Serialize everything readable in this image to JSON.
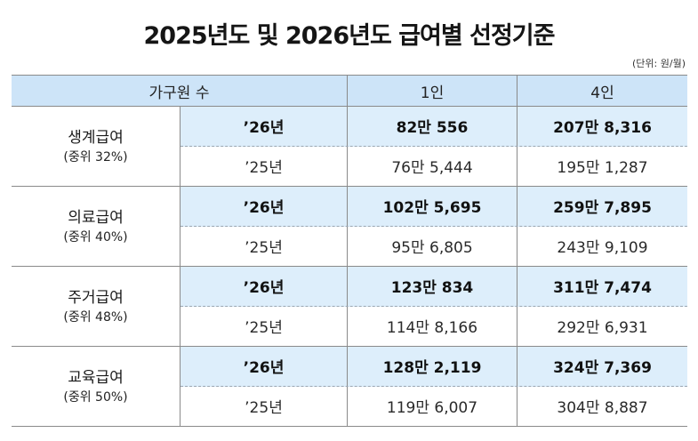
{
  "title": "2025년도 및 2026년도 급여별 선정기준",
  "unit": "(단위: 원/월)",
  "header": {
    "household": "가구원 수",
    "col1": "1인",
    "col2": "4인"
  },
  "groups": [
    {
      "name": "생계급여",
      "median": "(중위 32%)",
      "rows": [
        {
          "year": "’26년",
          "v1": "82만 556",
          "v2": "207만 8,316"
        },
        {
          "year": "’25년",
          "v1": "76만 5,444",
          "v2": "195만 1,287"
        }
      ]
    },
    {
      "name": "의료급여",
      "median": "(중위 40%)",
      "rows": [
        {
          "year": "’26년",
          "v1": "102만 5,695",
          "v2": "259만 7,895"
        },
        {
          "year": "’25년",
          "v1": "95만 6,805",
          "v2": "243만 9,109"
        }
      ]
    },
    {
      "name": "주거급여",
      "median": "(중위 48%)",
      "rows": [
        {
          "year": "’26년",
          "v1": "123만 834",
          "v2": "311만 7,474"
        },
        {
          "year": "’25년",
          "v1": "114만 8,166",
          "v2": "292만 6,931"
        }
      ]
    },
    {
      "name": "교육급여",
      "median": "(중위 50%)",
      "rows": [
        {
          "year": "’26년",
          "v1": "128만 2,119",
          "v2": "324만 7,369"
        },
        {
          "year": "’25년",
          "v1": "119만 6,007",
          "v2": "304만 8,887"
        }
      ]
    }
  ]
}
